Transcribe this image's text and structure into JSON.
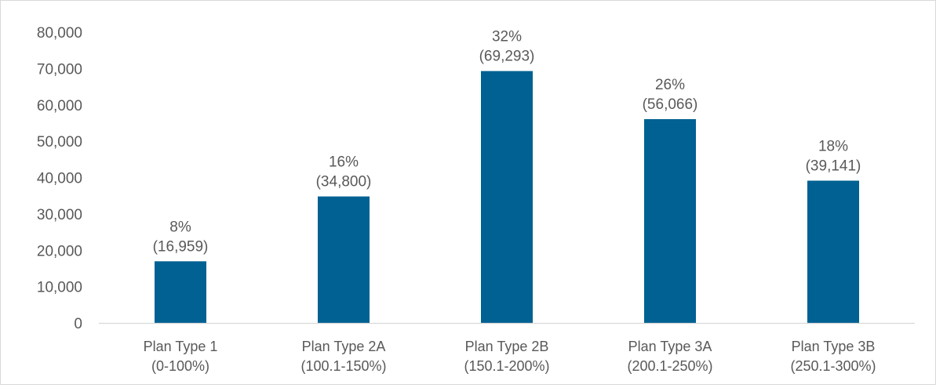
{
  "chart_data": {
    "type": "bar",
    "title": "",
    "xlabel": "",
    "ylabel": "",
    "categories": [
      [
        "Plan Type 1",
        "(0-100%)"
      ],
      [
        "Plan Type 2A",
        "(100.1-150%)"
      ],
      [
        "Plan Type 2B",
        "(150.1-200%)"
      ],
      [
        "Plan Type 3A",
        "(200.1-250%)"
      ],
      [
        "Plan Type 3B",
        "(250.1-300%)"
      ]
    ],
    "values": [
      16959,
      34800,
      69293,
      56066,
      39141
    ],
    "data_labels": [
      [
        "8%",
        "(16,959)"
      ],
      [
        "16%",
        "(34,800)"
      ],
      [
        "32%",
        "(69,293)"
      ],
      [
        "26%",
        "(56,066)"
      ],
      [
        "18%",
        "(39,141)"
      ]
    ],
    "ylim": [
      0,
      80000
    ],
    "yticks": [
      0,
      10000,
      20000,
      30000,
      40000,
      50000,
      60000,
      70000,
      80000
    ],
    "ytick_labels": [
      "0",
      "10,000",
      "20,000",
      "30,000",
      "40,000",
      "50,000",
      "60,000",
      "70,000",
      "80,000"
    ],
    "bar_color": "#006192",
    "grid": false,
    "legend": "none"
  }
}
